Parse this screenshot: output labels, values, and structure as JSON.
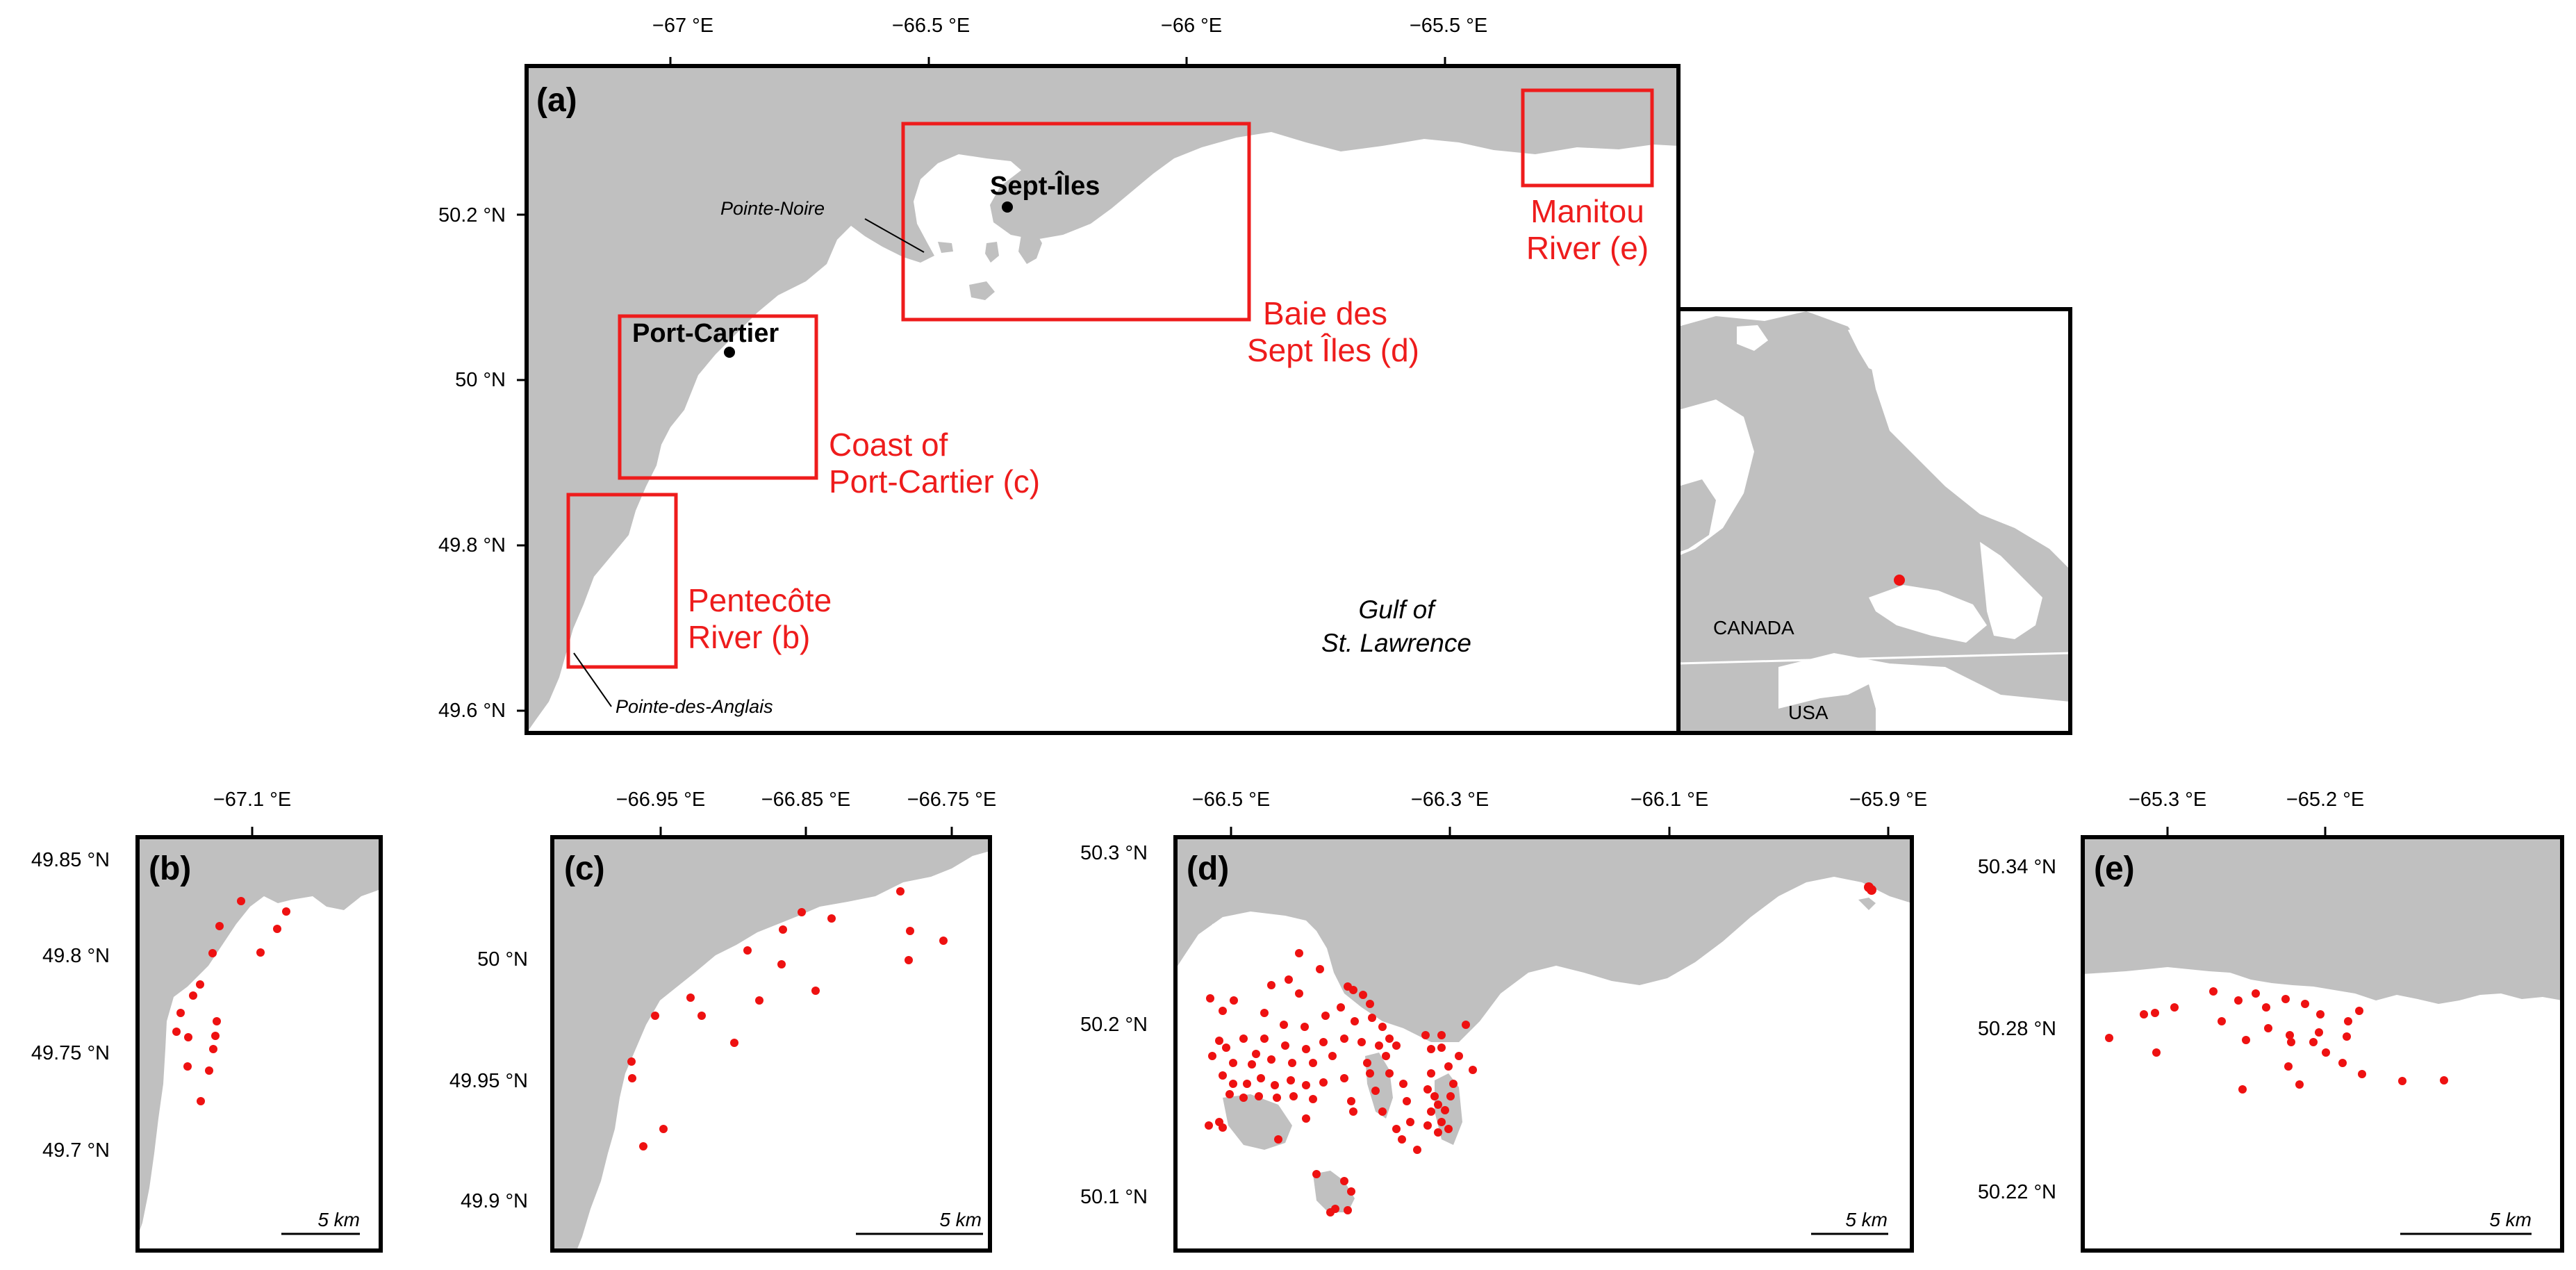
{
  "colors": {
    "land": "#c0c0c0",
    "water": "#ffffff",
    "sampling_points": "#ee1111",
    "zoom_boxes": "#ee1c1c",
    "frame": "#000000"
  },
  "panel_a": {
    "label": "(a)",
    "top_ticks": [
      "−67 °E",
      "−66.5 °E",
      "−66 °E",
      "−65.5 °E"
    ],
    "left_ticks": [
      "50.2 °N",
      "50 °N",
      "49.8 °N",
      "49.6 °N"
    ],
    "cities": {
      "sept_iles": "Sept-Îles",
      "port_cartier": "Port-Cartier"
    },
    "places": {
      "pointe_noire": "Pointe-Noire",
      "pointe_des_anglais": "Pointe-des-Anglais"
    },
    "water_label": [
      "Gulf of",
      "St. Lawrence"
    ],
    "zoom_labels": {
      "manitou": [
        "Manitou",
        "River (e)"
      ],
      "baie": [
        "Baie des",
        "Sept Îles (d)"
      ],
      "coast": [
        "Coast of",
        "Port-Cartier (c)"
      ],
      "pentecote": [
        "Pentecôte",
        "River (b)"
      ]
    }
  },
  "inset": {
    "canada": "CANADA",
    "usa": "USA"
  },
  "panel_b": {
    "label": "(b)",
    "top_ticks": [
      "−67.1 °E"
    ],
    "left_ticks": [
      "49.85 °N",
      "49.8 °N",
      "49.75 °N",
      "49.7 °N"
    ],
    "scale": "5 km"
  },
  "panel_c": {
    "label": "(c)",
    "top_ticks": [
      "−66.95 °E",
      "−66.85 °E",
      "−66.75 °E"
    ],
    "left_ticks": [
      "50 °N",
      "49.95 °N",
      "49.9 °N"
    ],
    "scale": "5 km"
  },
  "panel_d": {
    "label": "(d)",
    "top_ticks": [
      "−66.5 °E",
      "−66.3 °E",
      "−66.1 °E",
      "−65.9 °E"
    ],
    "left_ticks": [
      "50.3 °N",
      "50.2 °N",
      "50.1 °N"
    ],
    "scale": "5 km"
  },
  "panel_e": {
    "label": "(e)",
    "top_ticks": [
      "−65.3 °E",
      "−65.2 °E"
    ],
    "left_ticks": [
      "50.34 °N",
      "50.28 °N",
      "50.22 °N"
    ],
    "scale": "5 km"
  }
}
